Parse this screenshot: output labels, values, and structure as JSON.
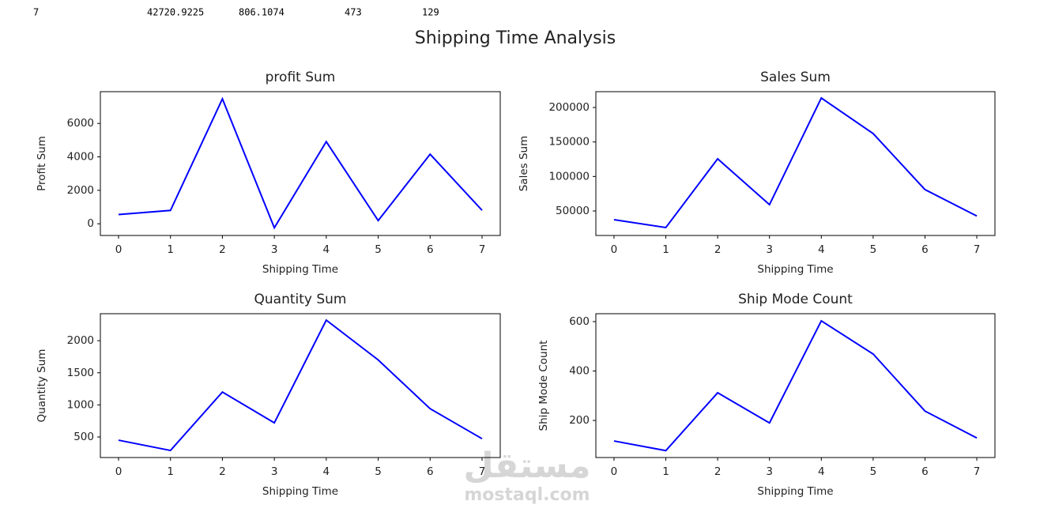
{
  "output_row": [
    7,
    42720.9225,
    806.1074,
    473,
    129
  ],
  "figure_title": "Shipping Time Analysis",
  "watermark": {
    "logo": "مستقل",
    "site": "mostaql.com"
  },
  "chart_data": [
    {
      "type": "line",
      "title": "profit Sum",
      "xlabel": "Shipping Time",
      "ylabel": "Profit Sum",
      "color": "#0000ff",
      "x": [
        0,
        1,
        2,
        3,
        4,
        5,
        6,
        7
      ],
      "values": [
        550,
        800,
        7470,
        -240,
        4910,
        190,
        4160,
        806.1074
      ],
      "xlim": [
        -0.35,
        7.35
      ],
      "xticks": [
        0,
        1,
        2,
        3,
        4,
        5,
        6,
        7
      ],
      "ylim": [
        -700,
        7900
      ],
      "yticks": [
        0,
        2000,
        4000,
        6000
      ]
    },
    {
      "type": "line",
      "title": "Sales Sum",
      "xlabel": "Shipping Time",
      "ylabel": "Sales Sum",
      "color": "#0000ff",
      "x": [
        0,
        1,
        2,
        3,
        4,
        5,
        6,
        7
      ],
      "values": [
        37400,
        26000,
        125600,
        59200,
        213700,
        162200,
        81000,
        42720.9225
      ],
      "xlim": [
        -0.35,
        7.35
      ],
      "xticks": [
        0,
        1,
        2,
        3,
        4,
        5,
        6,
        7
      ],
      "ylim": [
        14500,
        222900
      ],
      "yticks": [
        50000,
        100000,
        150000,
        200000
      ]
    },
    {
      "type": "line",
      "title": "Quantity Sum",
      "xlabel": "Shipping Time",
      "ylabel": "Quantity Sum",
      "color": "#0000ff",
      "x": [
        0,
        1,
        2,
        3,
        4,
        5,
        6,
        7
      ],
      "values": [
        450,
        290,
        1200,
        720,
        2320,
        1700,
        940,
        473
      ],
      "xlim": [
        -0.35,
        7.35
      ],
      "xticks": [
        0,
        1,
        2,
        3,
        4,
        5,
        6,
        7
      ],
      "ylim": [
        180,
        2420
      ],
      "yticks": [
        500,
        1000,
        1500,
        2000
      ]
    },
    {
      "type": "line",
      "title": "Ship Mode Count",
      "xlabel": "Shipping Time",
      "ylabel": "Ship Mode Count",
      "color": "#0000ff",
      "x": [
        0,
        1,
        2,
        3,
        4,
        5,
        6,
        7
      ],
      "values": [
        117,
        78,
        312,
        190,
        603,
        469,
        238,
        129
      ],
      "xlim": [
        -0.35,
        7.35
      ],
      "xticks": [
        0,
        1,
        2,
        3,
        4,
        5,
        6,
        7
      ],
      "ylim": [
        50,
        632
      ],
      "yticks": [
        200,
        400,
        600
      ]
    }
  ]
}
